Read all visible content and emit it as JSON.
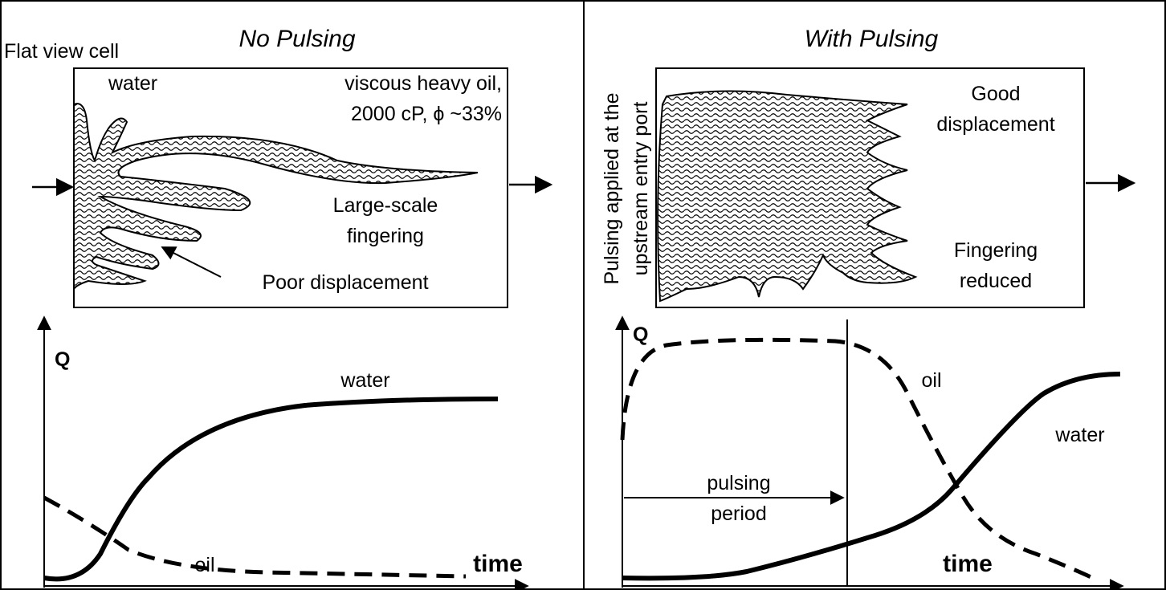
{
  "left": {
    "title": "No Pulsing",
    "cell_label": "Flat view cell",
    "water_label": "water",
    "oil_label_1": "viscous heavy oil,",
    "oil_label_2": "2000 cP, ϕ ~33%",
    "fingering_1": "Large-scale",
    "fingering_2": "fingering",
    "poor": "Poor displacement",
    "q_axis": "Q",
    "water_curve": "water",
    "oil_curve": "oil",
    "time_axis": "time"
  },
  "right": {
    "title": "With Pulsing",
    "port_1": "Pulsing applied at the",
    "port_2": "upstream entry port",
    "good_1": "Good",
    "good_2": "displacement",
    "reduced_1": "Fingering",
    "reduced_2": "reduced",
    "q_axis": "Q",
    "oil_curve": "oil",
    "water_curve": "water",
    "period_1": "pulsing",
    "period_2": "period",
    "time_axis": "time"
  }
}
